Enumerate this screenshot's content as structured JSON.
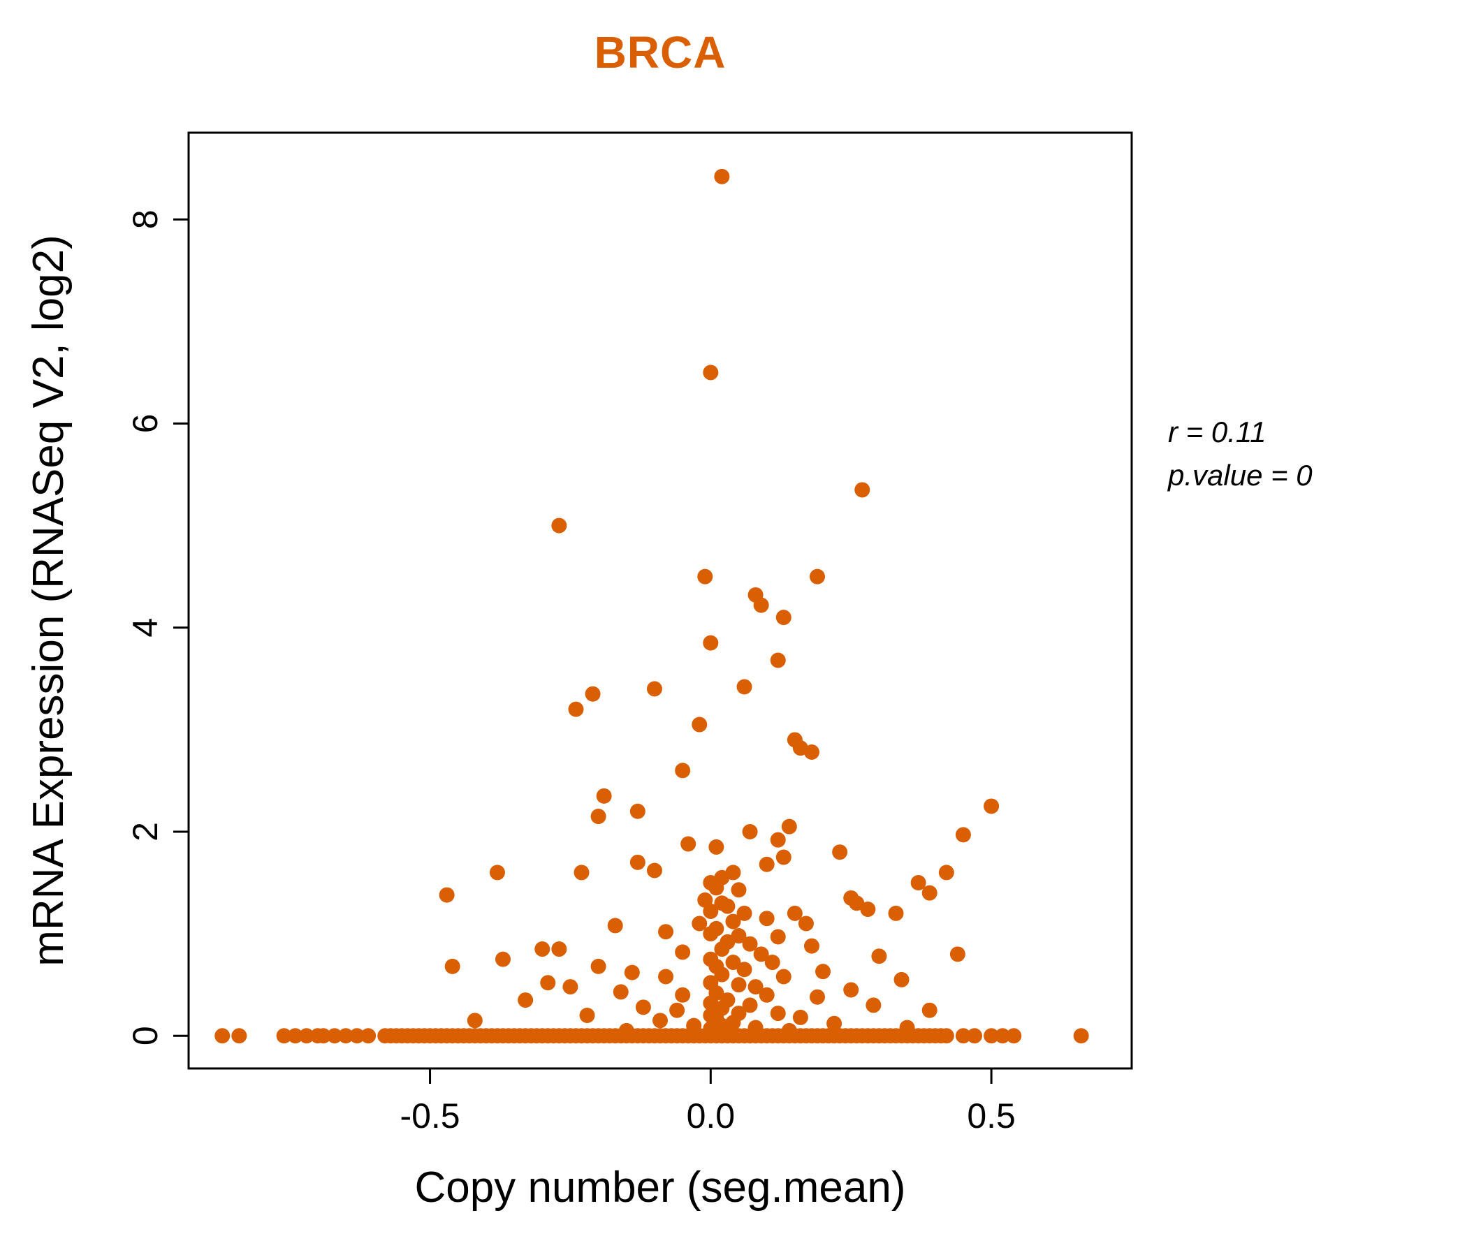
{
  "title": "BRCA",
  "annotation": {
    "r_line": "r = 0.11",
    "p_line": "p.value = 0"
  },
  "colors": {
    "accent": "#D95F02",
    "axis": "#000000",
    "background": "#FFFFFF"
  },
  "chart_data": {
    "type": "scatter",
    "title": "BRCA",
    "xlabel": "Copy number (seg.mean)",
    "ylabel": "mRNA Expression (RNASeq V2, log2)",
    "xlim": [
      -0.93,
      0.75
    ],
    "ylim": [
      -0.32,
      8.85
    ],
    "grid": false,
    "legend": "none",
    "x_ticks": [
      -0.5,
      0.0,
      0.5
    ],
    "x_tick_labels": [
      "-0.5",
      "0.0",
      "0.5"
    ],
    "y_ticks": [
      0,
      2,
      4,
      6,
      8
    ],
    "y_tick_labels": [
      "0",
      "2",
      "4",
      "6",
      "8"
    ],
    "point_color": "#D95F02",
    "stats": {
      "r": 0.11,
      "p_value": 0
    },
    "points": [
      [
        0.02,
        8.42
      ],
      [
        0.0,
        6.5
      ],
      [
        0.27,
        5.35
      ],
      [
        -0.27,
        5.0
      ],
      [
        -0.01,
        4.5
      ],
      [
        0.19,
        4.5
      ],
      [
        0.08,
        4.32
      ],
      [
        0.09,
        4.22
      ],
      [
        0.13,
        4.1
      ],
      [
        0.0,
        3.85
      ],
      [
        0.12,
        3.68
      ],
      [
        -0.1,
        3.4
      ],
      [
        0.06,
        3.42
      ],
      [
        -0.21,
        3.35
      ],
      [
        -0.24,
        3.2
      ],
      [
        -0.02,
        3.05
      ],
      [
        0.15,
        2.9
      ],
      [
        0.16,
        2.82
      ],
      [
        0.18,
        2.78
      ],
      [
        -0.05,
        2.6
      ],
      [
        -0.19,
        2.35
      ],
      [
        -0.2,
        2.15
      ],
      [
        -0.13,
        2.2
      ],
      [
        0.5,
        2.25
      ],
      [
        0.14,
        2.05
      ],
      [
        0.07,
        2.0
      ],
      [
        0.12,
        1.92
      ],
      [
        0.45,
        1.97
      ],
      [
        -0.04,
        1.88
      ],
      [
        0.01,
        1.85
      ],
      [
        0.23,
        1.8
      ],
      [
        0.13,
        1.75
      ],
      [
        -0.13,
        1.7
      ],
      [
        0.1,
        1.68
      ],
      [
        -0.38,
        1.6
      ],
      [
        -0.23,
        1.6
      ],
      [
        -0.1,
        1.62
      ],
      [
        0.04,
        1.6
      ],
      [
        0.42,
        1.6
      ],
      [
        0.02,
        1.55
      ],
      [
        0.37,
        1.5
      ],
      [
        0.0,
        1.5
      ],
      [
        0.01,
        1.45
      ],
      [
        0.05,
        1.43
      ],
      [
        -0.47,
        1.38
      ],
      [
        0.39,
        1.4
      ],
      [
        0.25,
        1.35
      ],
      [
        -0.01,
        1.33
      ],
      [
        0.26,
        1.3
      ],
      [
        0.02,
        1.3
      ],
      [
        0.03,
        1.27
      ],
      [
        0.28,
        1.24
      ],
      [
        0.0,
        1.22
      ],
      [
        0.06,
        1.2
      ],
      [
        0.15,
        1.2
      ],
      [
        0.33,
        1.2
      ],
      [
        0.1,
        1.15
      ],
      [
        0.04,
        1.12
      ],
      [
        -0.02,
        1.1
      ],
      [
        0.17,
        1.1
      ],
      [
        -0.17,
        1.08
      ],
      [
        0.01,
        1.05
      ],
      [
        -0.08,
        1.02
      ],
      [
        0.0,
        1.0
      ],
      [
        0.05,
        0.98
      ],
      [
        0.12,
        0.97
      ],
      [
        -0.3,
        0.85
      ],
      [
        -0.27,
        0.85
      ],
      [
        0.03,
        0.92
      ],
      [
        0.07,
        0.9
      ],
      [
        0.18,
        0.88
      ],
      [
        0.02,
        0.85
      ],
      [
        -0.05,
        0.82
      ],
      [
        0.09,
        0.8
      ],
      [
        0.3,
        0.78
      ],
      [
        0.44,
        0.8
      ],
      [
        -0.37,
        0.75
      ],
      [
        0.0,
        0.75
      ],
      [
        0.04,
        0.72
      ],
      [
        0.11,
        0.72
      ],
      [
        -0.46,
        0.68
      ],
      [
        -0.2,
        0.68
      ],
      [
        0.01,
        0.68
      ],
      [
        0.06,
        0.65
      ],
      [
        0.2,
        0.63
      ],
      [
        -0.14,
        0.62
      ],
      [
        0.02,
        0.6
      ],
      [
        -0.08,
        0.58
      ],
      [
        0.13,
        0.58
      ],
      [
        0.34,
        0.55
      ],
      [
        -0.29,
        0.52
      ],
      [
        0.0,
        0.52
      ],
      [
        0.05,
        0.5
      ],
      [
        -0.25,
        0.48
      ],
      [
        0.08,
        0.48
      ],
      [
        0.25,
        0.45
      ],
      [
        -0.16,
        0.43
      ],
      [
        0.01,
        0.42
      ],
      [
        -0.05,
        0.4
      ],
      [
        0.1,
        0.4
      ],
      [
        0.19,
        0.38
      ],
      [
        -0.33,
        0.35
      ],
      [
        0.03,
        0.35
      ],
      [
        0.0,
        0.32
      ],
      [
        0.07,
        0.3
      ],
      [
        0.29,
        0.3
      ],
      [
        -0.12,
        0.28
      ],
      [
        0.02,
        0.27
      ],
      [
        0.39,
        0.25
      ],
      [
        -0.06,
        0.25
      ],
      [
        0.05,
        0.22
      ],
      [
        0.12,
        0.22
      ],
      [
        -0.22,
        0.2
      ],
      [
        0.0,
        0.2
      ],
      [
        0.16,
        0.18
      ],
      [
        0.01,
        0.17
      ],
      [
        -0.42,
        0.15
      ],
      [
        -0.09,
        0.15
      ],
      [
        0.04,
        0.13
      ],
      [
        0.22,
        0.12
      ],
      [
        0.02,
        0.1
      ],
      [
        -0.03,
        0.1
      ],
      [
        0.08,
        0.08
      ],
      [
        0.35,
        0.08
      ],
      [
        0.0,
        0.07
      ],
      [
        0.14,
        0.05
      ],
      [
        -0.15,
        0.05
      ]
    ],
    "baseline_x": [
      -0.87,
      -0.84,
      -0.76,
      -0.74,
      -0.72,
      -0.7,
      -0.69,
      -0.67,
      -0.65,
      -0.63,
      -0.61,
      -0.58,
      -0.57,
      -0.56,
      -0.55,
      -0.54,
      -0.53,
      -0.52,
      -0.51,
      -0.5,
      -0.49,
      -0.48,
      -0.47,
      -0.46,
      -0.45,
      -0.44,
      -0.43,
      -0.42,
      -0.41,
      -0.4,
      -0.39,
      -0.38,
      -0.37,
      -0.36,
      -0.35,
      -0.34,
      -0.33,
      -0.32,
      -0.31,
      -0.3,
      -0.29,
      -0.28,
      -0.27,
      -0.26,
      -0.25,
      -0.24,
      -0.23,
      -0.22,
      -0.21,
      -0.2,
      -0.19,
      -0.18,
      -0.17,
      -0.16,
      -0.15,
      -0.14,
      -0.13,
      -0.12,
      -0.11,
      -0.1,
      -0.09,
      -0.08,
      -0.07,
      -0.06,
      -0.05,
      -0.04,
      -0.03,
      -0.02,
      -0.01,
      0.0,
      0.01,
      0.02,
      0.03,
      0.04,
      0.05,
      0.06,
      0.07,
      0.08,
      0.09,
      0.1,
      0.11,
      0.12,
      0.13,
      0.14,
      0.15,
      0.16,
      0.17,
      0.18,
      0.19,
      0.2,
      0.21,
      0.22,
      0.23,
      0.24,
      0.25,
      0.26,
      0.27,
      0.28,
      0.29,
      0.3,
      0.31,
      0.32,
      0.33,
      0.34,
      0.35,
      0.36,
      0.37,
      0.38,
      0.39,
      0.4,
      0.41,
      0.42,
      0.45,
      0.47,
      0.5,
      0.52,
      0.54,
      0.66
    ]
  }
}
